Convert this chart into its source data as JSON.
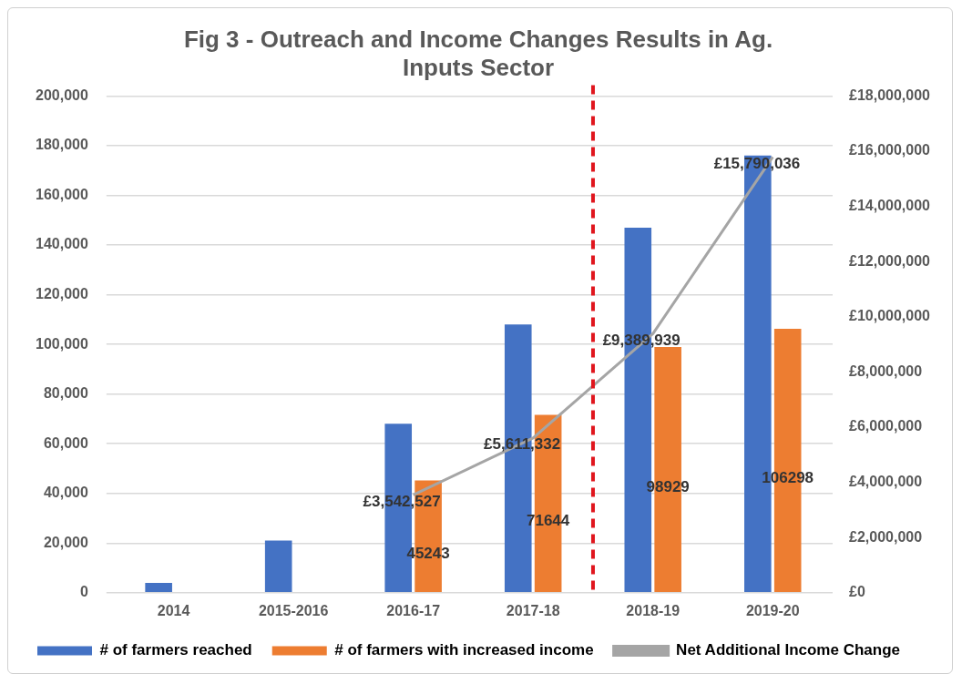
{
  "chart_data": {
    "type": "bar",
    "title": [
      "Fig 3 - Outreach and Income Changes Results in Ag.",
      "Inputs Sector"
    ],
    "categories": [
      "2014",
      "2015-2016",
      "2016-17",
      "2017-18",
      "2018-19",
      "2019-20"
    ],
    "series": [
      {
        "name": "# of farmers reached",
        "color": "#4472c4",
        "values": [
          4000,
          21000,
          68000,
          108000,
          147000,
          176000
        ]
      },
      {
        "name": "# of farmers with increased income",
        "color": "#ed7d31",
        "values": [
          null,
          null,
          45243,
          71644,
          98929,
          106298
        ],
        "value_labels": [
          null,
          null,
          "45243",
          "71644",
          "98929",
          "106298"
        ]
      },
      {
        "name": "Net Additional Income Change",
        "type": "line",
        "axis": "y2",
        "color": "#a5a5a5",
        "values": [
          null,
          null,
          3542527,
          5611332,
          9389939,
          15790036
        ],
        "value_labels": [
          null,
          null,
          "£3,542,527",
          "£5,611,332",
          "£9,389,939",
          "£15,790,036"
        ]
      }
    ],
    "ylim": [
      0,
      200000
    ],
    "yticks": [
      {
        "value": 0,
        "label": "0"
      },
      {
        "value": 20000,
        "label": "20,000"
      },
      {
        "value": 40000,
        "label": "40,000"
      },
      {
        "value": 60000,
        "label": "60,000"
      },
      {
        "value": 80000,
        "label": "80,000"
      },
      {
        "value": 100000,
        "label": "100,000"
      },
      {
        "value": 120000,
        "label": "120,000"
      },
      {
        "value": 140000,
        "label": "140,000"
      },
      {
        "value": 160000,
        "label": "160,000"
      },
      {
        "value": 180000,
        "label": "180,000"
      },
      {
        "value": 200000,
        "label": "200,000"
      }
    ],
    "y2lim": [
      0,
      18000000
    ],
    "y2ticks": [
      {
        "value": 0,
        "label": "£0"
      },
      {
        "value": 2000000,
        "label": "£2,000,000"
      },
      {
        "value": 4000000,
        "label": "£4,000,000"
      },
      {
        "value": 6000000,
        "label": "£6,000,000"
      },
      {
        "value": 8000000,
        "label": "£8,000,000"
      },
      {
        "value": 10000000,
        "label": "£10,000,000"
      },
      {
        "value": 12000000,
        "label": "£12,000,000"
      },
      {
        "value": 14000000,
        "label": "£14,000,000"
      },
      {
        "value": 16000000,
        "label": "£16,000,000"
      },
      {
        "value": 18000000,
        "label": "£18,000,000"
      }
    ],
    "ref_lines": [
      {
        "axis": "x",
        "value": "2018-19",
        "color": "#e0161e",
        "line_style": "dashed"
      }
    ],
    "grid": "y",
    "legend": "bottom",
    "marker": "none"
  }
}
